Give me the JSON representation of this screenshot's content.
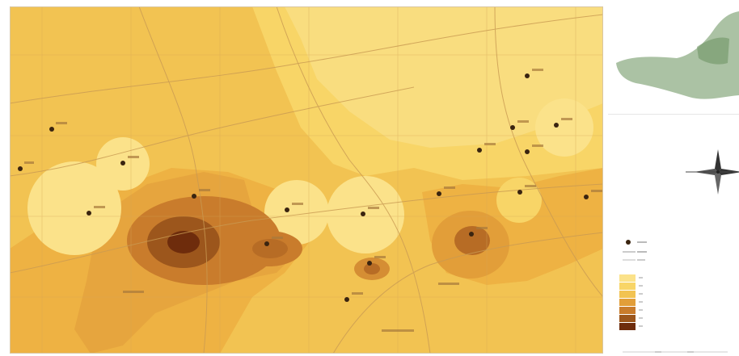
{
  "colors": {
    "class1": "#fbe28a",
    "class2": "#f8d567",
    "class3": "#f2c352",
    "class4": "#eeb243",
    "class5": "#e29e39",
    "class6": "#c97c2c",
    "class7": "#9c561c",
    "class8": "#6e2c0c",
    "well": "#3a2410",
    "line": "#c99a52",
    "land": "#8fae86"
  },
  "icons": {
    "north_arrow": "compass-rose-icon",
    "well": "well-point-icon"
  },
  "legend": {
    "symbols": [
      "well-point",
      "line",
      "line"
    ],
    "classes": [
      "class1",
      "class2",
      "class3",
      "class4",
      "class5",
      "class6",
      "class7"
    ]
  }
}
